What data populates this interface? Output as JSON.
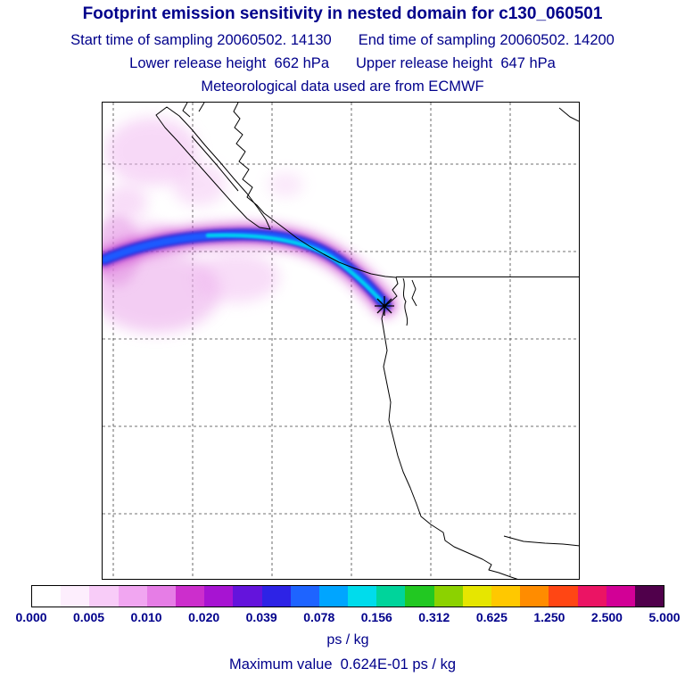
{
  "header": {
    "title": "Footprint emission sensitivity in nested domain for c130_060501",
    "sampling_start": "Start time of sampling 20060502. 14130",
    "sampling_end": "End time of sampling 20060502. 14200",
    "release_lower": "Lower release height  662 hPa",
    "release_upper": "Upper release height  647 hPa",
    "met_source": "Meteorological data used are from ECMWF"
  },
  "map": {
    "marker": "receptor-asterisk-on-coast",
    "features": [
      "dashed lat-lon gridlines",
      "pacific-northwest coastline",
      "vancouver island",
      "us-canada straight border line",
      "emission sensitivity plume extending west over ocean"
    ]
  },
  "colorbar": {
    "unit": "ps / kg",
    "ticks": [
      "0.000",
      "0.005",
      "0.010",
      "0.020",
      "0.039",
      "0.078",
      "0.156",
      "0.312",
      "0.625",
      "1.250",
      "2.500",
      "5.000"
    ],
    "cells": [
      "#ffffff",
      "#fdeefd",
      "#f8ccf8",
      "#f1a6f1",
      "#e67de6",
      "#cc2ecc",
      "#a714d2",
      "#6414dc",
      "#2d23e6",
      "#1e64ff",
      "#00a5ff",
      "#00dcec",
      "#00d49b",
      "#22c822",
      "#8cd200",
      "#e6e600",
      "#ffc800",
      "#ff8c00",
      "#ff4614",
      "#eb1464",
      "#d20096",
      "#50004b"
    ]
  },
  "footer": {
    "max_value_text": "Maximum value  0.624E-01 ps / kg"
  },
  "colors": {
    "text": "#00008b",
    "plume_haze": "#f0b4f0",
    "plume_haze_mid": "#eaa6ea",
    "plume_haze_deep": "#e394e3",
    "plume_fringe_outer": "#d24fd2",
    "plume_fringe_inner": "#b432c8",
    "plume_dark_blue": "#2a1ed2",
    "plume_blue": "#1e5aff",
    "plume_cyan": "#00ccf2"
  },
  "chart_data": {
    "type": "heatmap",
    "title": "Footprint emission sensitivity in nested domain for c130_060501",
    "units": "ps / kg",
    "colorscale_levels": [
      0.0,
      0.005,
      0.01,
      0.02,
      0.039,
      0.078,
      0.156,
      0.312,
      0.625,
      1.25,
      2.5,
      5.0
    ],
    "max_value": 0.0624,
    "max_value_label": "0.624E-01",
    "start_time_of_sampling": "20060502. 14130",
    "end_time_of_sampling": "20060502. 14200",
    "lower_release_height_hPa": 662,
    "upper_release_height_hPa": 647,
    "meteorological_data": "ECMWF",
    "legend_position": "bottom horizontal colorbar",
    "grid": "dashed lat/lon gridlines, unlabeled",
    "notes": "Elongated footprint plume stretches westward over the Pacific from a receptor (asterisk) on the North American west coast near the US-Canada border; plume core reaches the 0.039-0.078 ps/kg class (blue/cyan), surrounded by 0.020-0.039 (violet) and diffuse 0.005-0.020 (pink/magenta) sensitivity patches to the northwest and southwest."
  }
}
